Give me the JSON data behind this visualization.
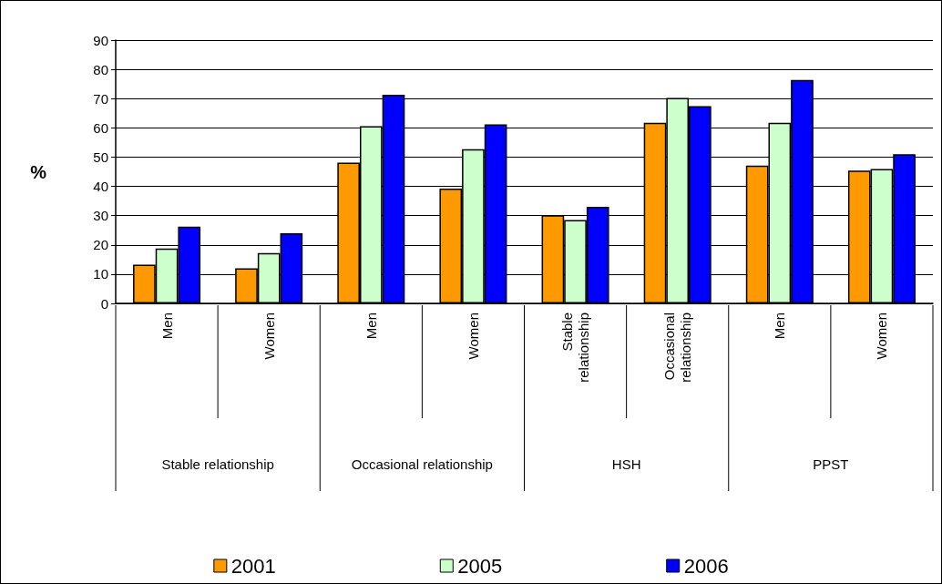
{
  "chart_data": {
    "type": "bar",
    "categories": [
      "Men",
      "Women",
      "Men",
      "Women",
      "Stable\nrelationship",
      "Occasional\nrelationship",
      "Men",
      "Women"
    ],
    "annotations": [
      "Stable relationship",
      "Occasional relationship",
      "HSH",
      "PPST"
    ],
    "ylabel": "%",
    "series": [
      {
        "name": "2001",
        "color": "#ff9900",
        "values": [
          13.2,
          12.0,
          48.1,
          39.2,
          30.1,
          61.7,
          47.1,
          45.4
        ]
      },
      {
        "name": "2005",
        "color": "#ccffcc",
        "values": [
          18.8,
          17.2,
          60.6,
          52.7,
          28.5,
          70.2,
          61.7,
          45.9
        ]
      },
      {
        "name": "2006",
        "color": "#0000ff",
        "values": [
          26.2,
          24.0,
          71.3,
          61.2,
          33.0,
          67.4,
          76.4,
          51.0
        ]
      }
    ],
    "ylim": [
      0,
      90
    ],
    "yticks": [
      0,
      10,
      20,
      30,
      40,
      50,
      60,
      70,
      80,
      90
    ],
    "grid": "y",
    "legend": "bottom"
  }
}
